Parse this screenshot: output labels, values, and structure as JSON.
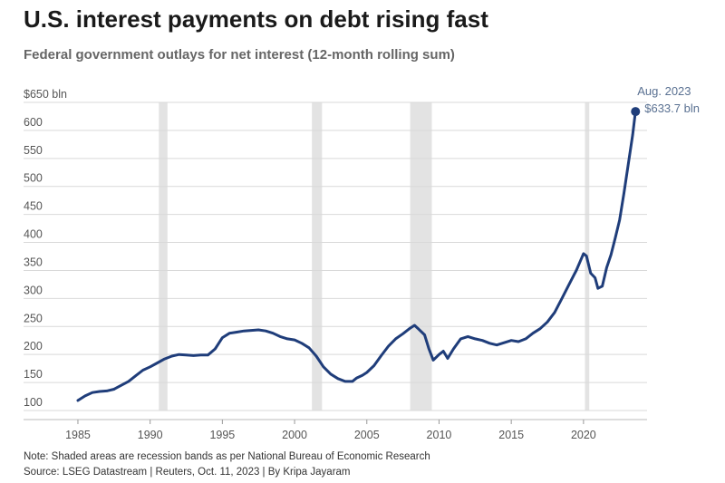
{
  "title": "U.S. interest payments on debt rising fast",
  "subtitle": "Federal government outlays for net interest (12-month rolling sum)",
  "note": "Note: Shaded areas are recession bands as per National Bureau of Economic Research",
  "source": "Source: LSEG Datastream | Reuters, Oct. 11, 2023 | By Kripa Jayaram",
  "colors": {
    "line": "#1f3d7a",
    "recession": "#e3e3e3",
    "grid": "#d9d9d9",
    "tick_text": "#555555",
    "annotation_text": "#5a7192"
  },
  "chart_data": {
    "type": "line",
    "xlim": [
      1984.5,
      2024.4
    ],
    "ylim": [
      100,
      650
    ],
    "y_ticks": [
      {
        "value": 100,
        "label": "100"
      },
      {
        "value": 150,
        "label": "150"
      },
      {
        "value": 200,
        "label": "200"
      },
      {
        "value": 250,
        "label": "250"
      },
      {
        "value": 300,
        "label": "300"
      },
      {
        "value": 350,
        "label": "350"
      },
      {
        "value": 400,
        "label": "400"
      },
      {
        "value": 450,
        "label": "450"
      },
      {
        "value": 500,
        "label": "500"
      },
      {
        "value": 550,
        "label": "550"
      },
      {
        "value": 600,
        "label": "600"
      },
      {
        "value": 650,
        "label": "$650 bln"
      }
    ],
    "x_ticks": [
      {
        "value": 1985,
        "label": "1985"
      },
      {
        "value": 1990,
        "label": "1990"
      },
      {
        "value": 1995,
        "label": "1995"
      },
      {
        "value": 2000,
        "label": "2000"
      },
      {
        "value": 2005,
        "label": "2005"
      },
      {
        "value": 2010,
        "label": "2010"
      },
      {
        "value": 2015,
        "label": "2015"
      },
      {
        "value": 2020,
        "label": "2020"
      }
    ],
    "grid": "horizontal",
    "recessions": [
      {
        "start": 1990.6,
        "end": 1991.2
      },
      {
        "start": 2001.2,
        "end": 2001.9
      },
      {
        "start": 2008.0,
        "end": 2009.5
      },
      {
        "start": 2020.1,
        "end": 2020.4
      }
    ],
    "series": [
      {
        "x": [
          1985.0,
          1985.5,
          1986.0,
          1986.5,
          1987.0,
          1987.5,
          1988.0,
          1988.5,
          1989.0,
          1989.5,
          1990.0,
          1990.5,
          1991.0,
          1991.5,
          1992.0,
          1992.5,
          1993.0,
          1993.5,
          1994.0,
          1994.5,
          1995.0,
          1995.5,
          1996.0,
          1996.5,
          1997.0,
          1997.5,
          1998.0,
          1998.5,
          1999.0,
          1999.5,
          2000.0,
          2000.5,
          2001.0,
          2001.5,
          2002.0,
          2002.5,
          2003.0,
          2003.5,
          2004.0,
          2004.3,
          2004.7,
          2005.0,
          2005.5,
          2006.0,
          2006.5,
          2007.0,
          2007.5,
          2008.0,
          2008.3,
          2008.6,
          2009.0,
          2009.3,
          2009.6,
          2010.0,
          2010.3,
          2010.6,
          2011.0,
          2011.5,
          2012.0,
          2012.5,
          2013.0,
          2013.5,
          2014.0,
          2014.5,
          2015.0,
          2015.5,
          2016.0,
          2016.5,
          2017.0,
          2017.5,
          2018.0,
          2018.5,
          2019.0,
          2019.5,
          2019.8,
          2020.0,
          2020.2,
          2020.5,
          2020.8,
          2021.0,
          2021.3,
          2021.6,
          2021.9,
          2022.2,
          2022.5,
          2022.8,
          2023.1,
          2023.4,
          2023.6
        ],
        "y": [
          118,
          126,
          132,
          134,
          135,
          138,
          145,
          152,
          162,
          172,
          178,
          185,
          192,
          197,
          200,
          199,
          198,
          199,
          199,
          210,
          230,
          238,
          240,
          242,
          243,
          244,
          242,
          238,
          232,
          228,
          226,
          220,
          212,
          197,
          178,
          165,
          157,
          152,
          152,
          158,
          163,
          168,
          180,
          198,
          215,
          228,
          237,
          247,
          252,
          245,
          235,
          210,
          190,
          200,
          206,
          193,
          210,
          228,
          232,
          228,
          225,
          220,
          217,
          221,
          225,
          223,
          228,
          238,
          246,
          258,
          275,
          300,
          325,
          350,
          368,
          380,
          376,
          345,
          337,
          318,
          322,
          355,
          378,
          408,
          440,
          488,
          540,
          592,
          633.7
        ]
      }
    ],
    "end_point": {
      "x": 2023.6,
      "y": 633.7
    },
    "annotation": {
      "line1": "Aug. 2023",
      "line2": "$633.7 bln"
    }
  }
}
